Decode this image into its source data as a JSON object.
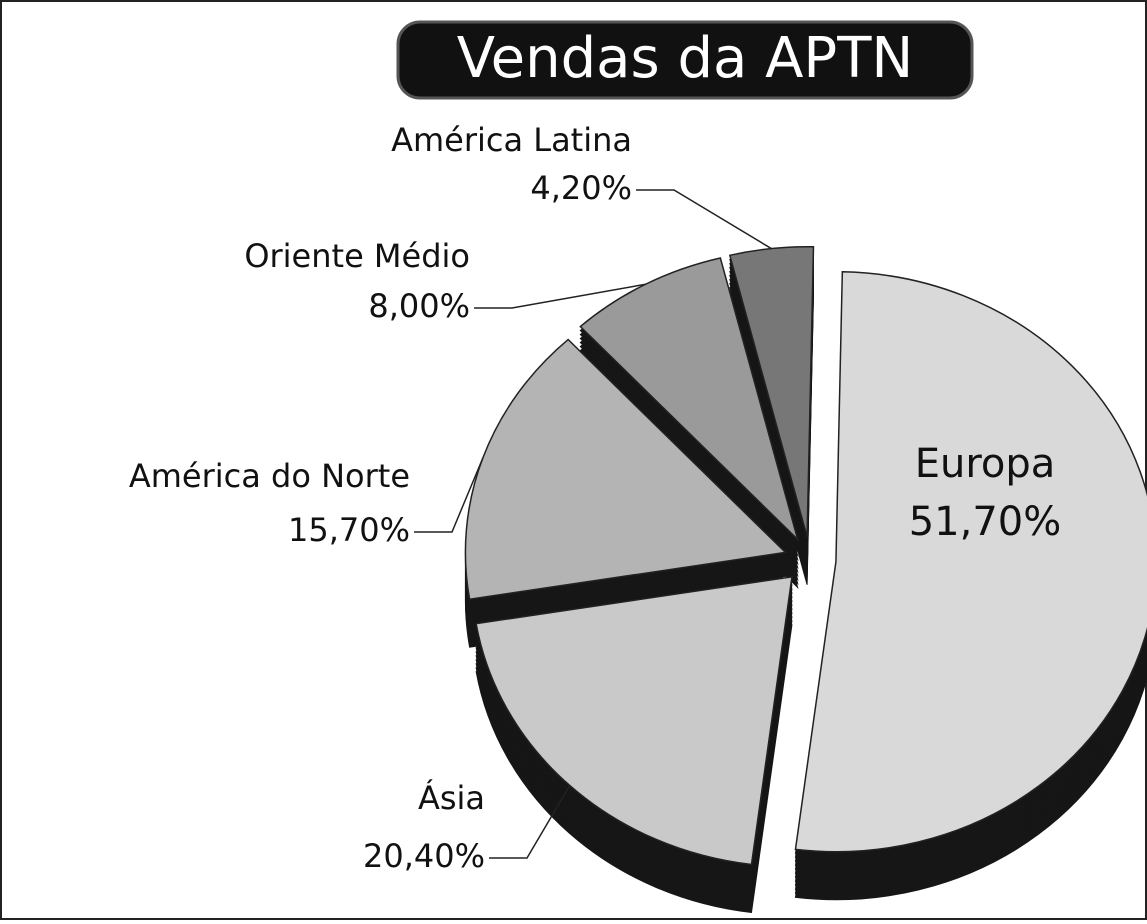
{
  "chart_data": {
    "type": "pie",
    "title": "Vendas da APTN",
    "categories": [
      "Europa",
      "Ásia",
      "América do Norte",
      "Oriente Médio",
      "América Latina"
    ],
    "values": [
      51.7,
      20.4,
      15.7,
      8.0,
      4.2
    ],
    "value_labels": [
      "51,70%",
      "20,40%",
      "15,70%",
      "8,00%",
      "4,20%"
    ],
    "colors": [
      "#d9d9d9",
      "#c9c9c9",
      "#b4b4b4",
      "#9a9a9a",
      "#777777"
    ]
  }
}
